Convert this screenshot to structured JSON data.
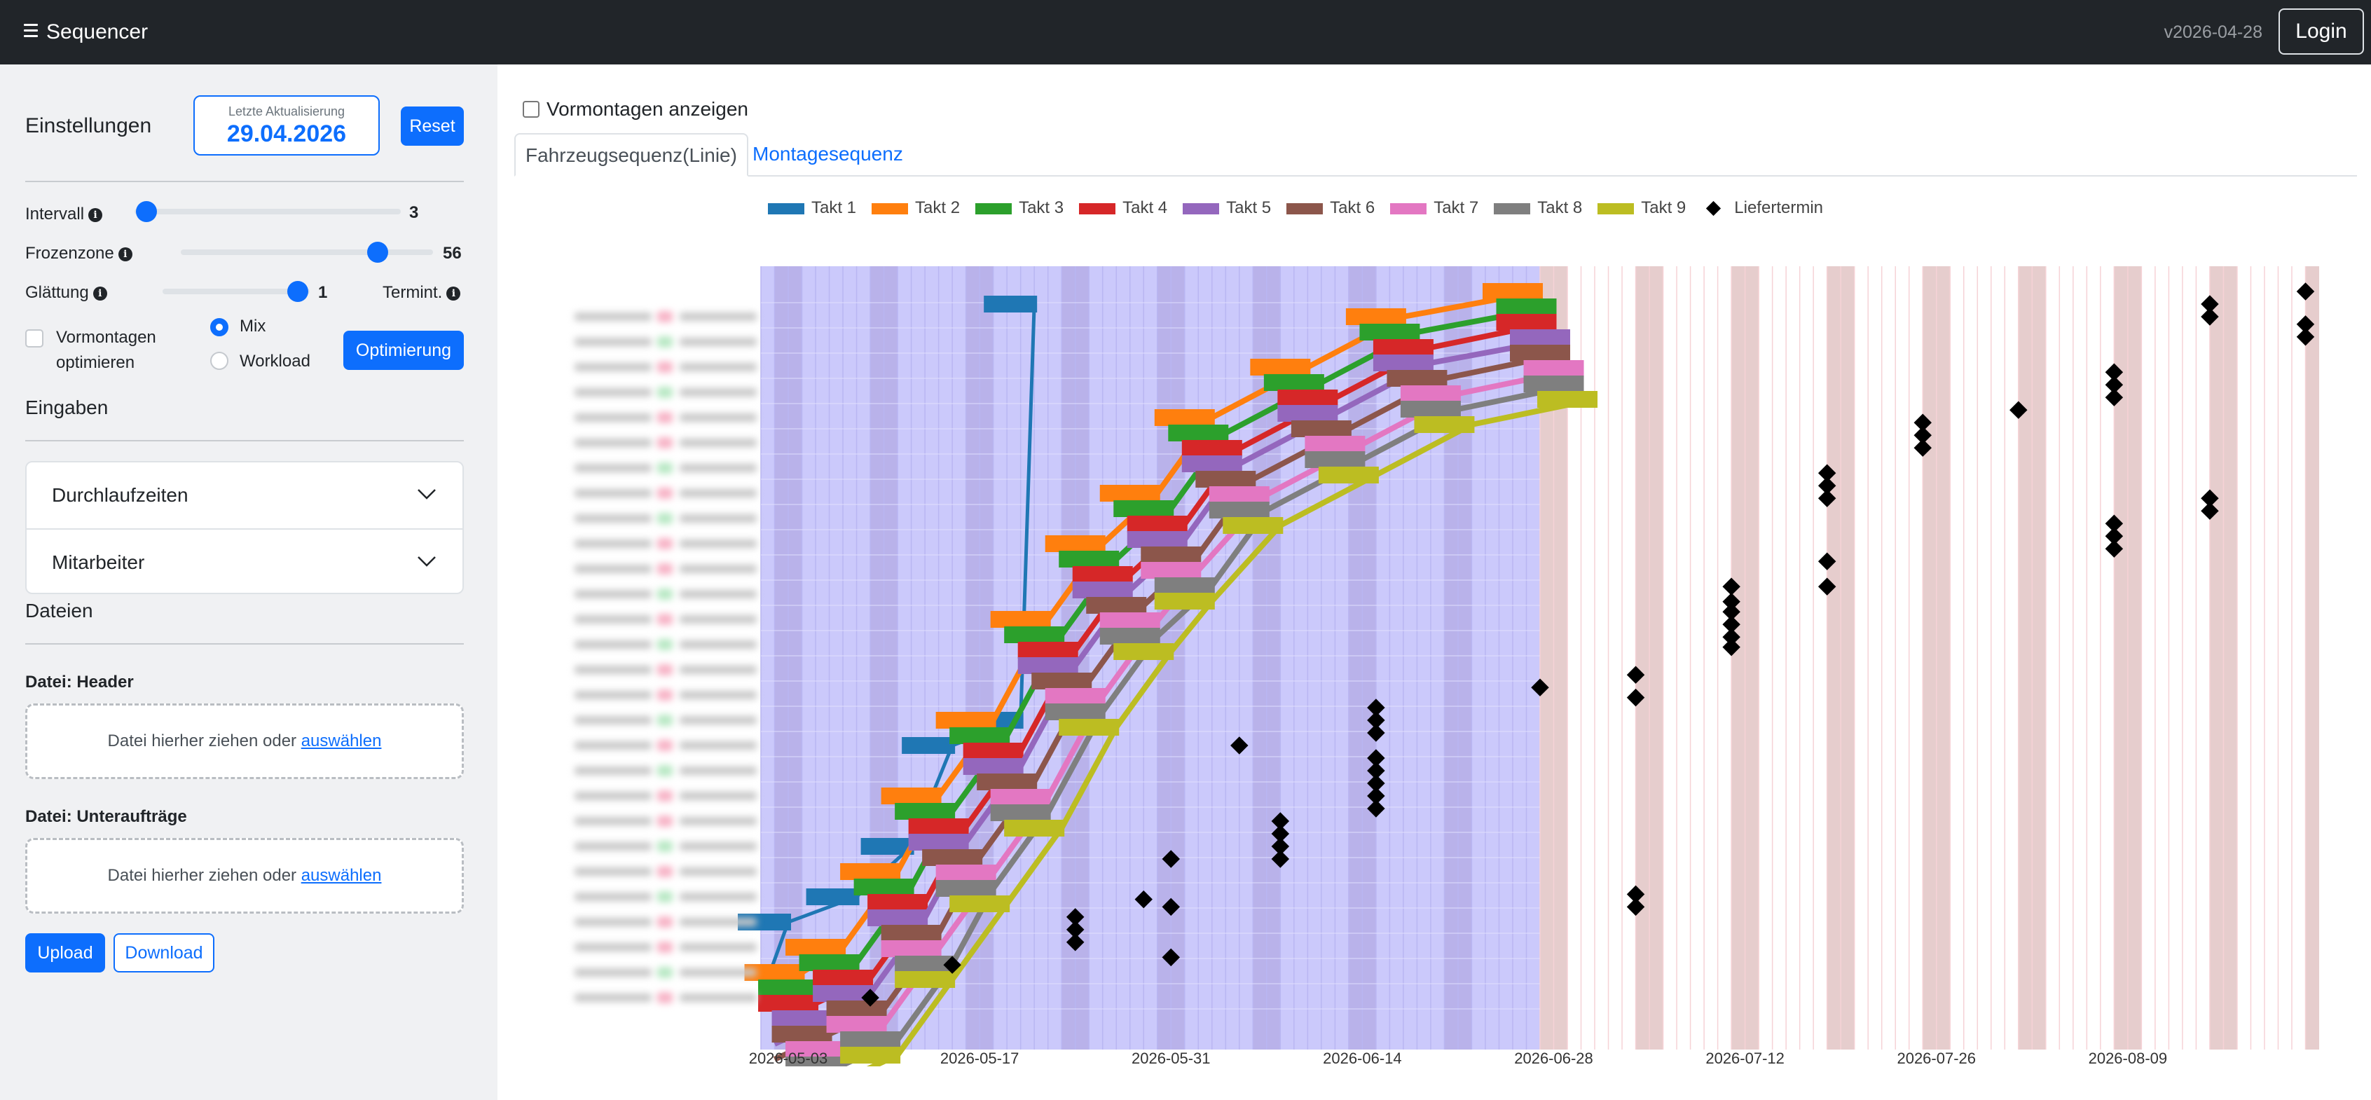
{
  "navbar": {
    "title": "Sequencer",
    "version": "v2026-04-28",
    "login_label": "Login"
  },
  "sidebar": {
    "settings_title": "Einstellungen",
    "last_update_label": "Letzte Aktualisierung",
    "last_update_value": "29.04.2026",
    "reset_label": "Reset",
    "sliders": [
      {
        "label": "Intervall",
        "value": "3",
        "fraction": 0.0
      },
      {
        "label": "Frozenzone",
        "value": "56",
        "fraction": 0.8
      },
      {
        "label": "Glättung",
        "value": "1",
        "fraction": 0.9
      }
    ],
    "termint_label": "Termint.",
    "vormontagen_optimieren_label": "Vormontagen optimieren",
    "radio_options": [
      {
        "label": "Mix",
        "selected": true
      },
      {
        "label": "Workload",
        "selected": false
      }
    ],
    "optimize_label": "Optimierung",
    "inputs_title": "Eingaben",
    "accordion": [
      {
        "label": "Durchlaufzeiten"
      },
      {
        "label": "Mitarbeiter"
      }
    ],
    "files_title": "Dateien",
    "file_header_label": "Datei: Header",
    "file_subjobs_label": "Datei: Unteraufträge",
    "dropzone_text": "Datei hierher ziehen oder",
    "dropzone_link": "auswählen",
    "upload_label": "Upload",
    "download_label": "Download"
  },
  "main": {
    "show_vormontagen_label": "Vormontagen anzeigen",
    "tabs": [
      {
        "label": "Fahrzeugsequenz(Linie)",
        "active": true
      },
      {
        "label": "Montagesequenz",
        "active": false
      }
    ]
  },
  "colors": {
    "primary": "#0d6efd",
    "navbar": "#212529",
    "frozen_zone": "#cbc9fb",
    "weekend_frozen": "#ab9fdc",
    "weekend_future": "#e6cdcd",
    "future_grid": "#f6d2d6"
  },
  "chart_data": {
    "type": "line",
    "title": "",
    "xlabel": "",
    "ylabel": "",
    "x_ticks": [
      "2026-05-03",
      "2026-05-17",
      "2026-05-31",
      "2026-06-14",
      "2026-06-28",
      "2026-07-12",
      "2026-07-26",
      "2026-08-09"
    ],
    "xlim": [
      "2026-05-01",
      "2026-08-22"
    ],
    "frozen_until": "2026-06-27",
    "legend_position": "top",
    "legend": [
      {
        "name": "Takt 1",
        "color": "#1f77b4"
      },
      {
        "name": "Takt 2",
        "color": "#ff7f0e"
      },
      {
        "name": "Takt 3",
        "color": "#2ca02c"
      },
      {
        "name": "Takt 4",
        "color": "#d62728"
      },
      {
        "name": "Takt 5",
        "color": "#9467bd"
      },
      {
        "name": "Takt 6",
        "color": "#8c564b"
      },
      {
        "name": "Takt 7",
        "color": "#e377c2"
      },
      {
        "name": "Takt 8",
        "color": "#7f7f7f"
      },
      {
        "name": "Takt 9",
        "color": "#bcbd22"
      },
      {
        "name": "Liefertermin",
        "color": "#000000",
        "marker": "diamond"
      }
    ],
    "y_rows": 28,
    "takt1_steps": [
      [
        "2026-05-01",
        0
      ],
      [
        "2026-05-03",
        3
      ],
      [
        "2026-05-08",
        4
      ],
      [
        "2026-05-12",
        6
      ],
      [
        "2026-05-15",
        10
      ],
      [
        "2026-05-20",
        11
      ],
      [
        "2026-05-21",
        27.5
      ]
    ],
    "series": [
      {
        "name": "Takt 2",
        "points": [
          [
            "2026-05-01",
            0
          ],
          [
            "2026-05-04",
            1
          ],
          [
            "2026-05-07",
            2
          ],
          [
            "2026-05-11",
            5
          ],
          [
            "2026-05-14",
            8
          ],
          [
            "2026-05-18",
            11
          ],
          [
            "2026-05-22",
            15
          ],
          [
            "2026-05-26",
            18
          ],
          [
            "2026-05-30",
            20
          ],
          [
            "2026-06-03",
            23
          ],
          [
            "2026-06-10",
            25
          ],
          [
            "2026-06-17",
            27
          ],
          [
            "2026-06-27",
            28
          ]
        ]
      },
      {
        "name": "Takt 3",
        "points": [
          [
            "2026-05-02",
            0
          ],
          [
            "2026-05-05",
            1
          ],
          [
            "2026-05-08",
            2
          ],
          [
            "2026-05-12",
            5
          ],
          [
            "2026-05-15",
            8
          ],
          [
            "2026-05-19",
            11
          ],
          [
            "2026-05-23",
            15
          ],
          [
            "2026-05-27",
            18
          ],
          [
            "2026-05-31",
            20
          ],
          [
            "2026-06-04",
            23
          ],
          [
            "2026-06-11",
            25
          ],
          [
            "2026-06-18",
            27
          ],
          [
            "2026-06-28",
            28
          ]
        ]
      },
      {
        "name": "Takt 4",
        "points": [
          [
            "2026-05-02",
            0
          ],
          [
            "2026-05-05",
            1
          ],
          [
            "2026-05-09",
            2
          ],
          [
            "2026-05-13",
            5
          ],
          [
            "2026-05-16",
            8
          ],
          [
            "2026-05-20",
            11
          ],
          [
            "2026-05-24",
            15
          ],
          [
            "2026-05-28",
            18
          ],
          [
            "2026-06-01",
            20
          ],
          [
            "2026-06-05",
            23
          ],
          [
            "2026-06-12",
            25
          ],
          [
            "2026-06-19",
            27
          ],
          [
            "2026-06-28",
            28
          ]
        ]
      },
      {
        "name": "Takt 5",
        "points": [
          [
            "2026-05-02",
            0
          ],
          [
            "2026-05-06",
            1
          ],
          [
            "2026-05-09",
            2
          ],
          [
            "2026-05-13",
            5
          ],
          [
            "2026-05-16",
            8
          ],
          [
            "2026-05-20",
            11
          ],
          [
            "2026-05-24",
            15
          ],
          [
            "2026-05-28",
            18
          ],
          [
            "2026-06-01",
            20
          ],
          [
            "2026-06-05",
            23
          ],
          [
            "2026-06-12",
            25
          ],
          [
            "2026-06-19",
            27
          ],
          [
            "2026-06-29",
            28
          ]
        ]
      },
      {
        "name": "Takt 6",
        "points": [
          [
            "2026-05-02",
            0
          ],
          [
            "2026-05-06",
            1
          ],
          [
            "2026-05-10",
            2
          ],
          [
            "2026-05-14",
            5
          ],
          [
            "2026-05-17",
            8
          ],
          [
            "2026-05-21",
            11
          ],
          [
            "2026-05-25",
            15
          ],
          [
            "2026-05-29",
            18
          ],
          [
            "2026-06-02",
            20
          ],
          [
            "2026-06-06",
            23
          ],
          [
            "2026-06-13",
            25
          ],
          [
            "2026-06-20",
            27
          ],
          [
            "2026-06-29",
            28
          ]
        ]
      },
      {
        "name": "Takt 7",
        "points": [
          [
            "2026-05-03",
            0
          ],
          [
            "2026-05-07",
            1
          ],
          [
            "2026-05-10",
            2
          ],
          [
            "2026-05-14",
            5
          ],
          [
            "2026-05-18",
            8
          ],
          [
            "2026-05-22",
            11
          ],
          [
            "2026-05-26",
            15
          ],
          [
            "2026-05-30",
            18
          ],
          [
            "2026-06-02",
            20
          ],
          [
            "2026-06-07",
            23
          ],
          [
            "2026-06-14",
            25
          ],
          [
            "2026-06-21",
            27
          ],
          [
            "2026-06-30",
            28
          ]
        ]
      },
      {
        "name": "Takt 8",
        "points": [
          [
            "2026-05-03",
            0
          ],
          [
            "2026-05-07",
            1
          ],
          [
            "2026-05-11",
            2
          ],
          [
            "2026-05-15",
            5
          ],
          [
            "2026-05-18",
            8
          ],
          [
            "2026-05-22",
            11
          ],
          [
            "2026-05-26",
            15
          ],
          [
            "2026-05-30",
            18
          ],
          [
            "2026-06-03",
            20
          ],
          [
            "2026-06-07",
            23
          ],
          [
            "2026-06-14",
            25
          ],
          [
            "2026-06-21",
            27
          ],
          [
            "2026-06-30",
            28
          ]
        ]
      },
      {
        "name": "Takt 9",
        "points": [
          [
            "2026-05-03",
            0
          ],
          [
            "2026-05-07",
            1
          ],
          [
            "2026-05-11",
            2
          ],
          [
            "2026-05-15",
            5
          ],
          [
            "2026-05-19",
            8
          ],
          [
            "2026-05-23",
            11
          ],
          [
            "2026-05-27",
            15
          ],
          [
            "2026-05-31",
            18
          ],
          [
            "2026-06-03",
            20
          ],
          [
            "2026-06-08",
            23
          ],
          [
            "2026-06-15",
            25
          ],
          [
            "2026-06-22",
            27
          ],
          [
            "2026-07-01",
            28
          ]
        ]
      }
    ],
    "liefertermin": [
      [
        "2026-05-09",
        0
      ],
      [
        "2026-05-15",
        1.3
      ],
      [
        "2026-05-24",
        2.2
      ],
      [
        "2026-05-24",
        2.7
      ],
      [
        "2026-05-24",
        3.2
      ],
      [
        "2026-05-31",
        1.6
      ],
      [
        "2026-05-31",
        3.6
      ],
      [
        "2026-05-31",
        5.5
      ],
      [
        "2026-05-29",
        3.9
      ],
      [
        "2026-06-05",
        10
      ],
      [
        "2026-06-08",
        5.5
      ],
      [
        "2026-06-08",
        6
      ],
      [
        "2026-06-08",
        6.5
      ],
      [
        "2026-06-08",
        7
      ],
      [
        "2026-06-15",
        7.5
      ],
      [
        "2026-06-15",
        8
      ],
      [
        "2026-06-15",
        8.5
      ],
      [
        "2026-06-15",
        9
      ],
      [
        "2026-06-15",
        9.5
      ],
      [
        "2026-06-15",
        10.5
      ],
      [
        "2026-06-15",
        11
      ],
      [
        "2026-06-15",
        11.5
      ],
      [
        "2026-06-27",
        12.3
      ],
      [
        "2026-07-04",
        11.9
      ],
      [
        "2026-07-04",
        12.8
      ],
      [
        "2026-07-04",
        3.6
      ],
      [
        "2026-07-04",
        4.1
      ],
      [
        "2026-07-11",
        13.9
      ],
      [
        "2026-07-11",
        14.3
      ],
      [
        "2026-07-11",
        14.8
      ],
      [
        "2026-07-11",
        15.3
      ],
      [
        "2026-07-11",
        15.7
      ],
      [
        "2026-07-11",
        16.3
      ],
      [
        "2026-07-18",
        16.3
      ],
      [
        "2026-07-18",
        17.3
      ],
      [
        "2026-07-18",
        19.8
      ],
      [
        "2026-07-18",
        20.3
      ],
      [
        "2026-07-18",
        20.8
      ],
      [
        "2026-07-25",
        21.8
      ],
      [
        "2026-07-25",
        22.3
      ],
      [
        "2026-07-25",
        22.8
      ],
      [
        "2026-08-01",
        23.3
      ],
      [
        "2026-08-08",
        17.8
      ],
      [
        "2026-08-08",
        18.3
      ],
      [
        "2026-08-08",
        18.8
      ],
      [
        "2026-08-08",
        23.8
      ],
      [
        "2026-08-08",
        24.3
      ],
      [
        "2026-08-08",
        24.8
      ],
      [
        "2026-08-15",
        19.3
      ],
      [
        "2026-08-15",
        19.8
      ],
      [
        "2026-08-15",
        27
      ],
      [
        "2026-08-15",
        27.5
      ],
      [
        "2026-08-22",
        26.2
      ],
      [
        "2026-08-22",
        26.7
      ],
      [
        "2026-08-22",
        28
      ]
    ]
  }
}
